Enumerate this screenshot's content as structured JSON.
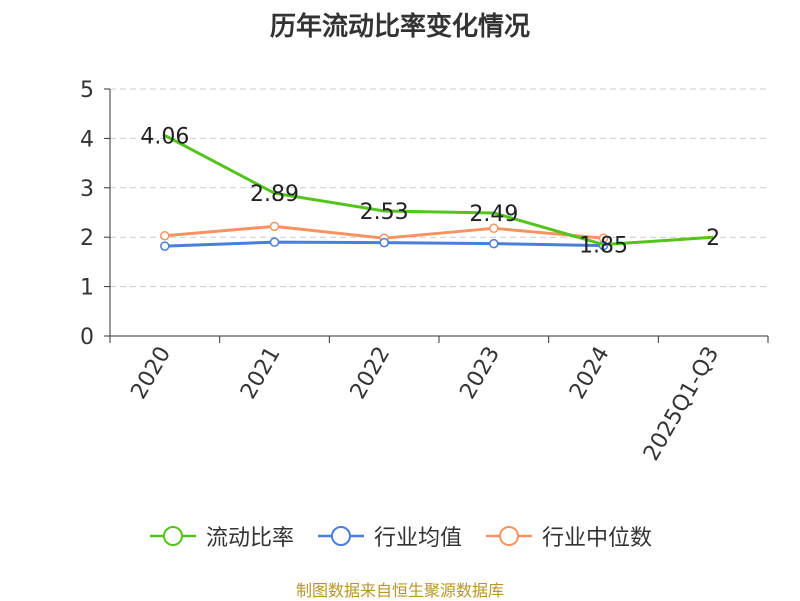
{
  "title": "历年流动比率变化情况",
  "footer": "制图数据来自恒生聚源数据库",
  "chart_data": {
    "type": "line",
    "title": "历年流动比率变化情况",
    "categories": [
      "2020",
      "2021",
      "2022",
      "2023",
      "2024",
      "2025Q1-Q3"
    ],
    "ylim": [
      0,
      5
    ],
    "yticks": [
      0,
      1,
      2,
      3,
      4,
      5
    ],
    "grid": true,
    "legend_position": "bottom",
    "series": [
      {
        "name": "流动比率",
        "color": "#52c41a",
        "values": [
          4.06,
          2.89,
          2.53,
          2.49,
          1.85,
          2
        ],
        "labels": [
          "4.06",
          "2.89",
          "2.53",
          "2.49",
          "1.85",
          "2"
        ]
      },
      {
        "name": "行业均值",
        "color": "#4a7fd9",
        "values": [
          1.82,
          1.9,
          1.89,
          1.87,
          1.83,
          null
        ]
      },
      {
        "name": "行业中位数",
        "color": "#f59461",
        "values": [
          2.03,
          2.22,
          1.98,
          2.18,
          1.98,
          null
        ]
      }
    ]
  }
}
